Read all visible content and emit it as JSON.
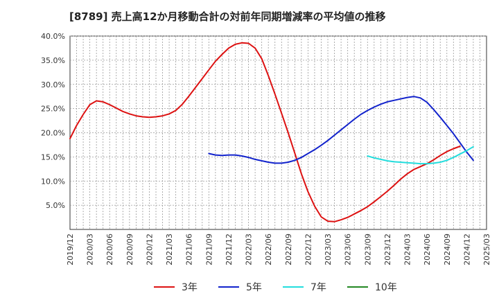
{
  "chart_data": {
    "type": "line",
    "title": "[8789]  売上高12か月移動合計の対前年同期増減率の平均値の推移",
    "xlabel": "",
    "ylabel": "",
    "ylim": [
      0,
      40
    ],
    "y_ticks": [
      5,
      10,
      15,
      20,
      25,
      30,
      35,
      40
    ],
    "y_tick_labels": [
      "5.0%",
      "10.0%",
      "15.0%",
      "20.0%",
      "25.0%",
      "30.0%",
      "35.0%",
      "40.0%"
    ],
    "x_range": [
      "2019-12",
      "2025-03"
    ],
    "x_tick_labels": [
      "2019/12",
      "2020/03",
      "2020/06",
      "2020/09",
      "2020/12",
      "2021/03",
      "2021/06",
      "2021/09",
      "2021/12",
      "2022/03",
      "2022/06",
      "2022/09",
      "2022/12",
      "2023/03",
      "2023/06",
      "2023/09",
      "2023/12",
      "2024/03",
      "2024/06",
      "2024/09",
      "2024/12",
      "2025/03"
    ],
    "grid": true,
    "legend_position": "bottom",
    "series": [
      {
        "name": "3年",
        "color": "#dd1111",
        "points": [
          [
            "2019-12",
            18.8
          ],
          [
            "2020-01",
            21.5
          ],
          [
            "2020-02",
            23.8
          ],
          [
            "2020-03",
            25.8
          ],
          [
            "2020-04",
            26.6
          ],
          [
            "2020-05",
            26.4
          ],
          [
            "2020-06",
            25.8
          ],
          [
            "2020-07",
            25.1
          ],
          [
            "2020-08",
            24.4
          ],
          [
            "2020-09",
            23.9
          ],
          [
            "2020-10",
            23.5
          ],
          [
            "2020-11",
            23.3
          ],
          [
            "2020-12",
            23.2
          ],
          [
            "2021-01",
            23.3
          ],
          [
            "2021-02",
            23.5
          ],
          [
            "2021-03",
            23.9
          ],
          [
            "2021-04",
            24.6
          ],
          [
            "2021-05",
            25.9
          ],
          [
            "2021-06",
            27.6
          ],
          [
            "2021-07",
            29.4
          ],
          [
            "2021-08",
            31.2
          ],
          [
            "2021-09",
            33.0
          ],
          [
            "2021-10",
            34.8
          ],
          [
            "2021-11",
            36.2
          ],
          [
            "2021-12",
            37.5
          ],
          [
            "2022-01",
            38.3
          ],
          [
            "2022-02",
            38.6
          ],
          [
            "2022-03",
            38.5
          ],
          [
            "2022-04",
            37.5
          ],
          [
            "2022-05",
            35.3
          ],
          [
            "2022-06",
            31.8
          ],
          [
            "2022-07",
            28.0
          ],
          [
            "2022-08",
            24.0
          ],
          [
            "2022-09",
            20.0
          ],
          [
            "2022-10",
            15.8
          ],
          [
            "2022-11",
            11.5
          ],
          [
            "2022-12",
            7.8
          ],
          [
            "2023-01",
            4.8
          ],
          [
            "2023-02",
            2.6
          ],
          [
            "2023-03",
            1.7
          ],
          [
            "2023-04",
            1.6
          ],
          [
            "2023-05",
            2.0
          ],
          [
            "2023-06",
            2.5
          ],
          [
            "2023-07",
            3.2
          ],
          [
            "2023-08",
            3.9
          ],
          [
            "2023-09",
            4.7
          ],
          [
            "2023-10",
            5.7
          ],
          [
            "2023-11",
            6.8
          ],
          [
            "2023-12",
            7.9
          ],
          [
            "2024-01",
            9.1
          ],
          [
            "2024-02",
            10.4
          ],
          [
            "2024-03",
            11.5
          ],
          [
            "2024-04",
            12.4
          ],
          [
            "2024-05",
            13.0
          ],
          [
            "2024-06",
            13.6
          ],
          [
            "2024-07",
            14.4
          ],
          [
            "2024-08",
            15.3
          ],
          [
            "2024-09",
            16.1
          ],
          [
            "2024-10",
            16.7
          ],
          [
            "2024-11",
            17.2
          ]
        ]
      },
      {
        "name": "5年",
        "color": "#1122cc",
        "points": [
          [
            "2021-09",
            15.7
          ],
          [
            "2021-10",
            15.4
          ],
          [
            "2021-11",
            15.3
          ],
          [
            "2021-12",
            15.4
          ],
          [
            "2022-01",
            15.4
          ],
          [
            "2022-02",
            15.2
          ],
          [
            "2022-03",
            14.9
          ],
          [
            "2022-04",
            14.5
          ],
          [
            "2022-05",
            14.2
          ],
          [
            "2022-06",
            13.9
          ],
          [
            "2022-07",
            13.7
          ],
          [
            "2022-08",
            13.7
          ],
          [
            "2022-09",
            13.9
          ],
          [
            "2022-10",
            14.3
          ],
          [
            "2022-11",
            14.9
          ],
          [
            "2022-12",
            15.7
          ],
          [
            "2023-01",
            16.5
          ],
          [
            "2023-02",
            17.4
          ],
          [
            "2023-03",
            18.4
          ],
          [
            "2023-04",
            19.5
          ],
          [
            "2023-05",
            20.6
          ],
          [
            "2023-06",
            21.7
          ],
          [
            "2023-07",
            22.8
          ],
          [
            "2023-08",
            23.8
          ],
          [
            "2023-09",
            24.6
          ],
          [
            "2023-10",
            25.3
          ],
          [
            "2023-11",
            25.9
          ],
          [
            "2023-12",
            26.4
          ],
          [
            "2024-01",
            26.7
          ],
          [
            "2024-02",
            27.0
          ],
          [
            "2024-03",
            27.3
          ],
          [
            "2024-04",
            27.5
          ],
          [
            "2024-05",
            27.2
          ],
          [
            "2024-06",
            26.3
          ],
          [
            "2024-07",
            24.8
          ],
          [
            "2024-08",
            23.2
          ],
          [
            "2024-09",
            21.5
          ],
          [
            "2024-10",
            19.8
          ],
          [
            "2024-11",
            17.9
          ],
          [
            "2024-12",
            16.0
          ],
          [
            "2025-01",
            14.3
          ]
        ]
      },
      {
        "name": "7年",
        "color": "#22dddd",
        "points": [
          [
            "2023-09",
            15.2
          ],
          [
            "2023-10",
            14.8
          ],
          [
            "2023-11",
            14.5
          ],
          [
            "2023-12",
            14.2
          ],
          [
            "2024-01",
            14.0
          ],
          [
            "2024-02",
            13.9
          ],
          [
            "2024-03",
            13.8
          ],
          [
            "2024-04",
            13.7
          ],
          [
            "2024-05",
            13.6
          ],
          [
            "2024-06",
            13.6
          ],
          [
            "2024-07",
            13.7
          ],
          [
            "2024-08",
            13.9
          ],
          [
            "2024-09",
            14.3
          ],
          [
            "2024-10",
            14.9
          ],
          [
            "2024-11",
            15.6
          ],
          [
            "2024-12",
            16.3
          ],
          [
            "2025-01",
            17.1
          ]
        ]
      },
      {
        "name": "10年",
        "color": "#228822",
        "points": []
      }
    ]
  }
}
